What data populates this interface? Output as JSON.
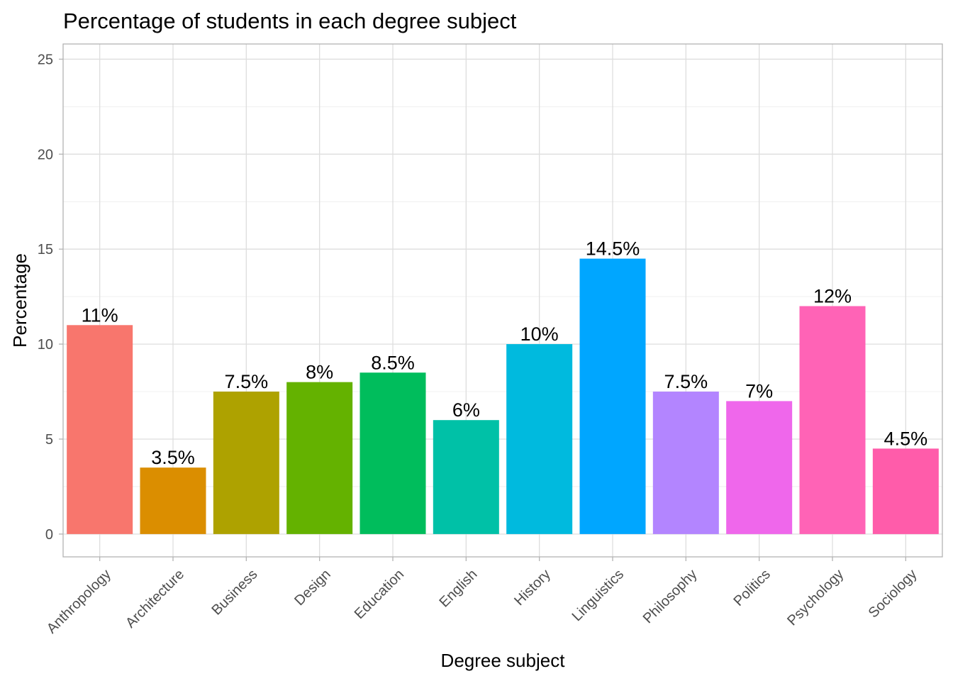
{
  "chart_data": {
    "type": "bar",
    "title": "Percentage of students in each degree subject",
    "xlabel": "Degree subject",
    "ylabel": "Percentage",
    "categories": [
      "Anthropology",
      "Architecture",
      "Business",
      "Design",
      "Education",
      "English",
      "History",
      "Linguistics",
      "Philosophy",
      "Politics",
      "Psychology",
      "Sociology"
    ],
    "values": [
      11,
      3.5,
      7.5,
      8,
      8.5,
      6,
      10,
      14.5,
      7.5,
      7,
      12,
      4.5
    ],
    "data_labels": [
      "11%",
      "3.5%",
      "7.5%",
      "8%",
      "8.5%",
      "6%",
      "10%",
      "14.5%",
      "7.5%",
      "7%",
      "12%",
      "4.5%"
    ],
    "colors": [
      "#F8766D",
      "#DB8E00",
      "#AEA200",
      "#64B200",
      "#00BD5C",
      "#00C1A7",
      "#00BADE",
      "#00A6FF",
      "#B385FF",
      "#EF67EB",
      "#FF63B6",
      "#FF5CAA"
    ],
    "ylim": [
      -1.2,
      25.8
    ],
    "yticks": [
      "0",
      "5",
      "10",
      "15",
      "20",
      "25"
    ],
    "grid": true,
    "legend": "none"
  }
}
